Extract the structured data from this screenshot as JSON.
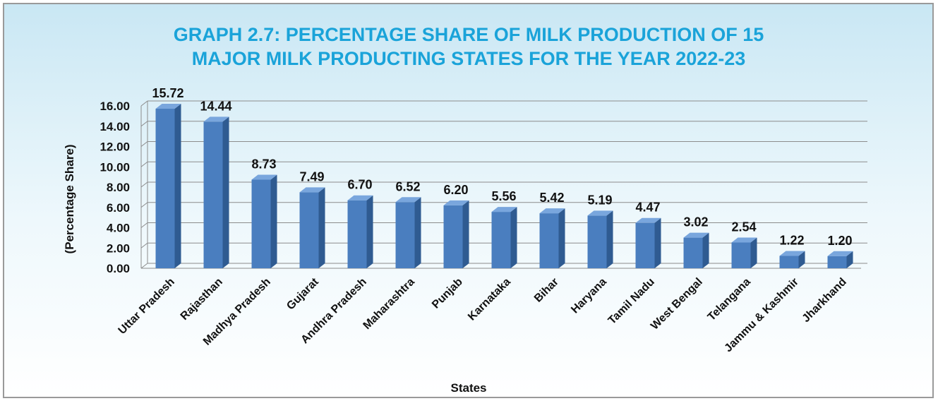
{
  "chart_data": {
    "type": "bar",
    "title_lines": [
      "GRAPH 2.7: PERCENTAGE SHARE OF MILK PRODUCTION OF 15",
      "MAJOR MILK PRODUCTING STATES FOR THE YEAR 2022-23"
    ],
    "xlabel": "States",
    "ylabel": "(Percentage Share)",
    "ylim": [
      0,
      16
    ],
    "yticks": [
      "0.00",
      "2.00",
      "4.00",
      "6.00",
      "8.00",
      "10.00",
      "12.00",
      "14.00",
      "16.00"
    ],
    "grid": true,
    "bar_style": "3d",
    "categories": [
      "Uttar Pradesh",
      "Rajasthan",
      "Madhya Pradesh",
      "Gujarat",
      "Andhra Pradesh",
      "Maharashtra",
      "Punjab",
      "Karnataka",
      "Bihar",
      "Haryana",
      "Tamil Nadu",
      "West Bengal",
      "Telangana",
      "Jammu & Kashmir",
      "Jharkhand"
    ],
    "values": [
      15.72,
      14.44,
      8.73,
      7.49,
      6.7,
      6.52,
      6.2,
      5.56,
      5.42,
      5.19,
      4.47,
      3.02,
      2.54,
      1.22,
      1.2
    ],
    "value_labels": [
      "15.72",
      "14.44",
      "8.73",
      "7.49",
      "6.70",
      "6.52",
      "6.20",
      "5.56",
      "5.42",
      "5.19",
      "4.47",
      "3.02",
      "2.54",
      "1.22",
      "1.20"
    ],
    "colors": {
      "bar_front": "#4a7ebf",
      "bar_side": "#2f5b91",
      "bar_top": "#79a6dd",
      "title": "#1aa3d9",
      "grid": "#8c8c8c"
    }
  }
}
